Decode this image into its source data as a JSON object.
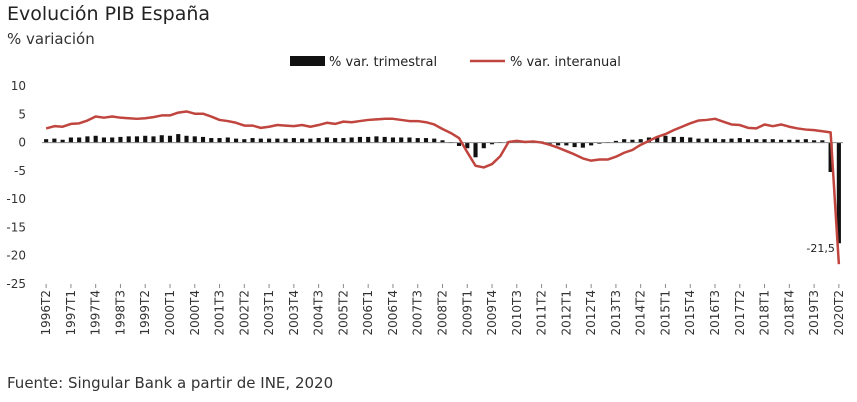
{
  "chart_data": {
    "type": "bar+line",
    "title": "Evolución PIB España",
    "subtitle": "% variación",
    "source": "Fuente: Singular Bank a partir de INE, 2020",
    "ylim": [
      -25,
      10
    ],
    "yticks": [
      10,
      5,
      0,
      -5,
      -10,
      -15,
      -20,
      -25
    ],
    "grid": false,
    "legend_position": "top",
    "x_tick_labels": [
      "1996T2",
      "1997T1",
      "1997T4",
      "1998T3",
      "1999T2",
      "2000T1",
      "2000T4",
      "2001T3",
      "2002T2",
      "2003T1",
      "2003T4",
      "2004T3",
      "2005T2",
      "2006T1",
      "2006T4",
      "2007T3",
      "2008T2",
      "2009T1",
      "2009T4",
      "2010T3",
      "2011T2",
      "2012T1",
      "2012T4",
      "2013T3",
      "2014T2",
      "2015T1",
      "2015T4",
      "2016T3",
      "2017T2",
      "2018T1",
      "2018T4",
      "2019T3",
      "2020T2"
    ],
    "annotation": {
      "text": "-21,5",
      "index": 96
    },
    "series": [
      {
        "name": "% var. trimestral",
        "kind": "bar",
        "color": "#111111",
        "values": [
          0.6,
          0.7,
          0.5,
          0.9,
          0.9,
          1.1,
          1.2,
          0.9,
          0.9,
          1.0,
          1.1,
          1.1,
          1.2,
          1.1,
          1.3,
          1.2,
          1.5,
          1.2,
          1.1,
          1.0,
          0.8,
          0.8,
          0.9,
          0.7,
          0.6,
          0.8,
          0.7,
          0.7,
          0.7,
          0.7,
          0.8,
          0.7,
          0.7,
          0.8,
          0.9,
          0.8,
          0.8,
          0.9,
          1.0,
          1.0,
          1.1,
          1.0,
          0.9,
          0.9,
          0.9,
          0.8,
          0.8,
          0.7,
          0.4,
          0.1,
          -0.6,
          -1.0,
          -2.6,
          -1.0,
          -0.3,
          0.1,
          0.2,
          0.1,
          0.3,
          0.0,
          0.2,
          -0.2,
          -0.5,
          -0.5,
          -0.8,
          -0.9,
          -0.5,
          -0.2,
          0.1,
          0.3,
          0.6,
          0.5,
          0.6,
          0.9,
          0.9,
          1.2,
          1.0,
          1.0,
          0.9,
          0.7,
          0.7,
          0.7,
          0.6,
          0.7,
          0.8,
          0.6,
          0.6,
          0.6,
          0.6,
          0.5,
          0.5,
          0.5,
          0.6,
          0.4,
          0.4,
          -5.2,
          -17.8
        ]
      },
      {
        "name": "% var. interanual",
        "kind": "line",
        "color": "#c0453e",
        "values": [
          2.5,
          2.9,
          2.8,
          3.3,
          3.4,
          3.9,
          4.6,
          4.4,
          4.6,
          4.4,
          4.3,
          4.2,
          4.3,
          4.5,
          4.8,
          4.8,
          5.3,
          5.5,
          5.1,
          5.1,
          4.6,
          4.0,
          3.8,
          3.5,
          3.0,
          3.0,
          2.6,
          2.8,
          3.1,
          3.0,
          2.9,
          3.1,
          2.8,
          3.1,
          3.5,
          3.3,
          3.7,
          3.6,
          3.8,
          4.0,
          4.1,
          4.2,
          4.2,
          4.0,
          3.8,
          3.8,
          3.6,
          3.2,
          2.4,
          1.7,
          0.8,
          -1.7,
          -4.1,
          -4.4,
          -3.8,
          -2.4,
          0.1,
          0.3,
          0.1,
          0.2,
          0.0,
          -0.4,
          -0.9,
          -1.5,
          -2.1,
          -2.8,
          -3.2,
          -3.0,
          -3.0,
          -2.5,
          -1.8,
          -1.3,
          -0.4,
          0.3,
          1.0,
          1.5,
          2.2,
          2.8,
          3.4,
          3.9,
          4.0,
          4.2,
          3.7,
          3.2,
          3.1,
          2.6,
          2.5,
          3.2,
          2.9,
          3.2,
          2.8,
          2.5,
          2.3,
          2.2,
          2.0,
          1.8,
          -21.5
        ]
      }
    ]
  }
}
